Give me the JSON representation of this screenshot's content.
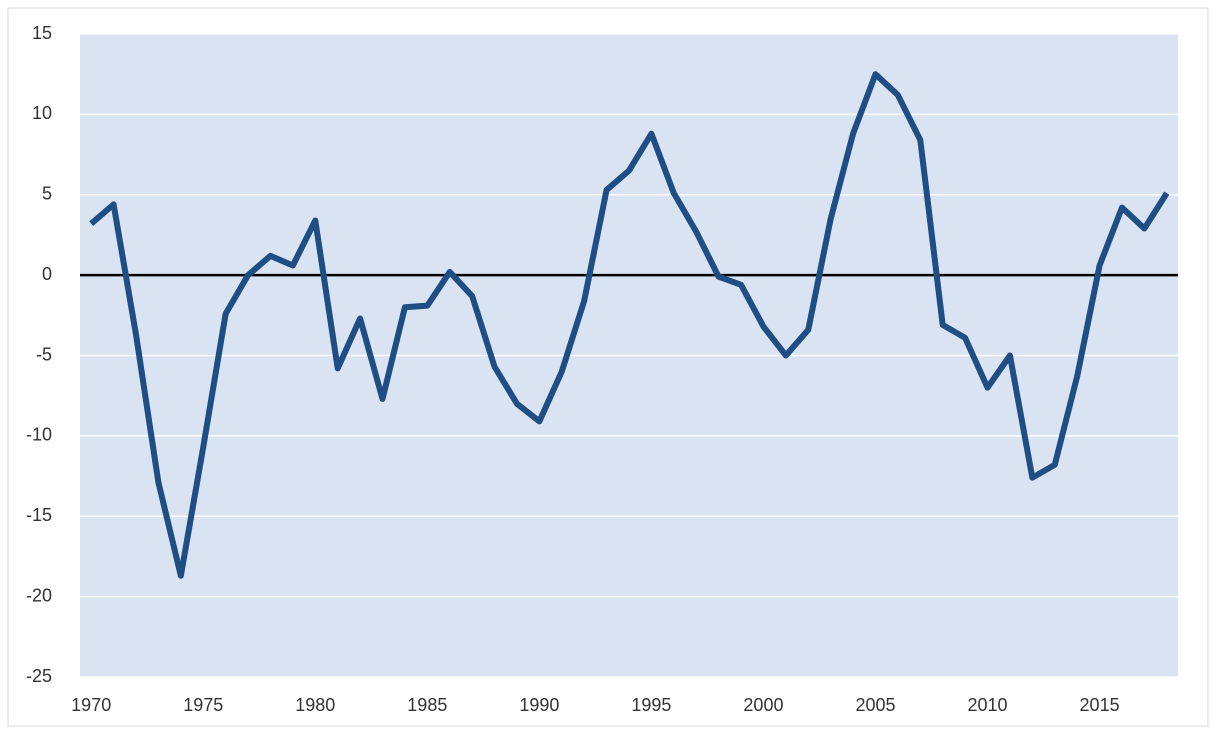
{
  "chart_data": {
    "type": "line",
    "x": [
      1970,
      1971,
      1972,
      1973,
      1974,
      1975,
      1976,
      1977,
      1978,
      1979,
      1980,
      1981,
      1982,
      1983,
      1984,
      1985,
      1986,
      1987,
      1988,
      1989,
      1990,
      1991,
      1992,
      1993,
      1994,
      1995,
      1996,
      1997,
      1998,
      1999,
      2000,
      2001,
      2002,
      2003,
      2004,
      2005,
      2006,
      2007,
      2008,
      2009,
      2010,
      2011,
      2012,
      2013,
      2014,
      2015,
      2016,
      2017,
      2018
    ],
    "series": [
      {
        "color": "#1f4e84",
        "values": [
          3.2,
          4.4,
          -3.7,
          -12.9,
          -18.7,
          -10.7,
          -2.4,
          0,
          1.2,
          0.6,
          3.4,
          -5.8,
          -2.7,
          -7.7,
          -2.0,
          -1.9,
          0.2,
          -1.3,
          -5.7,
          -8.0,
          -9.1,
          -6.0,
          -1.6,
          5.3,
          6.5,
          8.8,
          5.1,
          2.7,
          -0.1,
          -0.6,
          -3.2,
          -5.0,
          -3.4,
          3.5,
          8.8,
          12.5,
          11.2,
          8.4,
          -3.1,
          -3.9,
          -7.0,
          -5.0,
          -12.6,
          -11.8,
          -6.3,
          0.6,
          4.2,
          2.9,
          5.1
        ]
      }
    ],
    "xlim": [
      1969.5,
      2018.5
    ],
    "xticks": [
      1970,
      1975,
      1980,
      1985,
      1990,
      1995,
      2000,
      2005,
      2010,
      2015
    ],
    "ylim": [
      -25,
      15
    ],
    "yticks": [
      -25,
      -20,
      -15,
      -10,
      -5,
      0,
      5,
      10,
      15
    ],
    "grid": true,
    "plot_background": "#dae3f1",
    "zero_line_color": "#000000"
  }
}
